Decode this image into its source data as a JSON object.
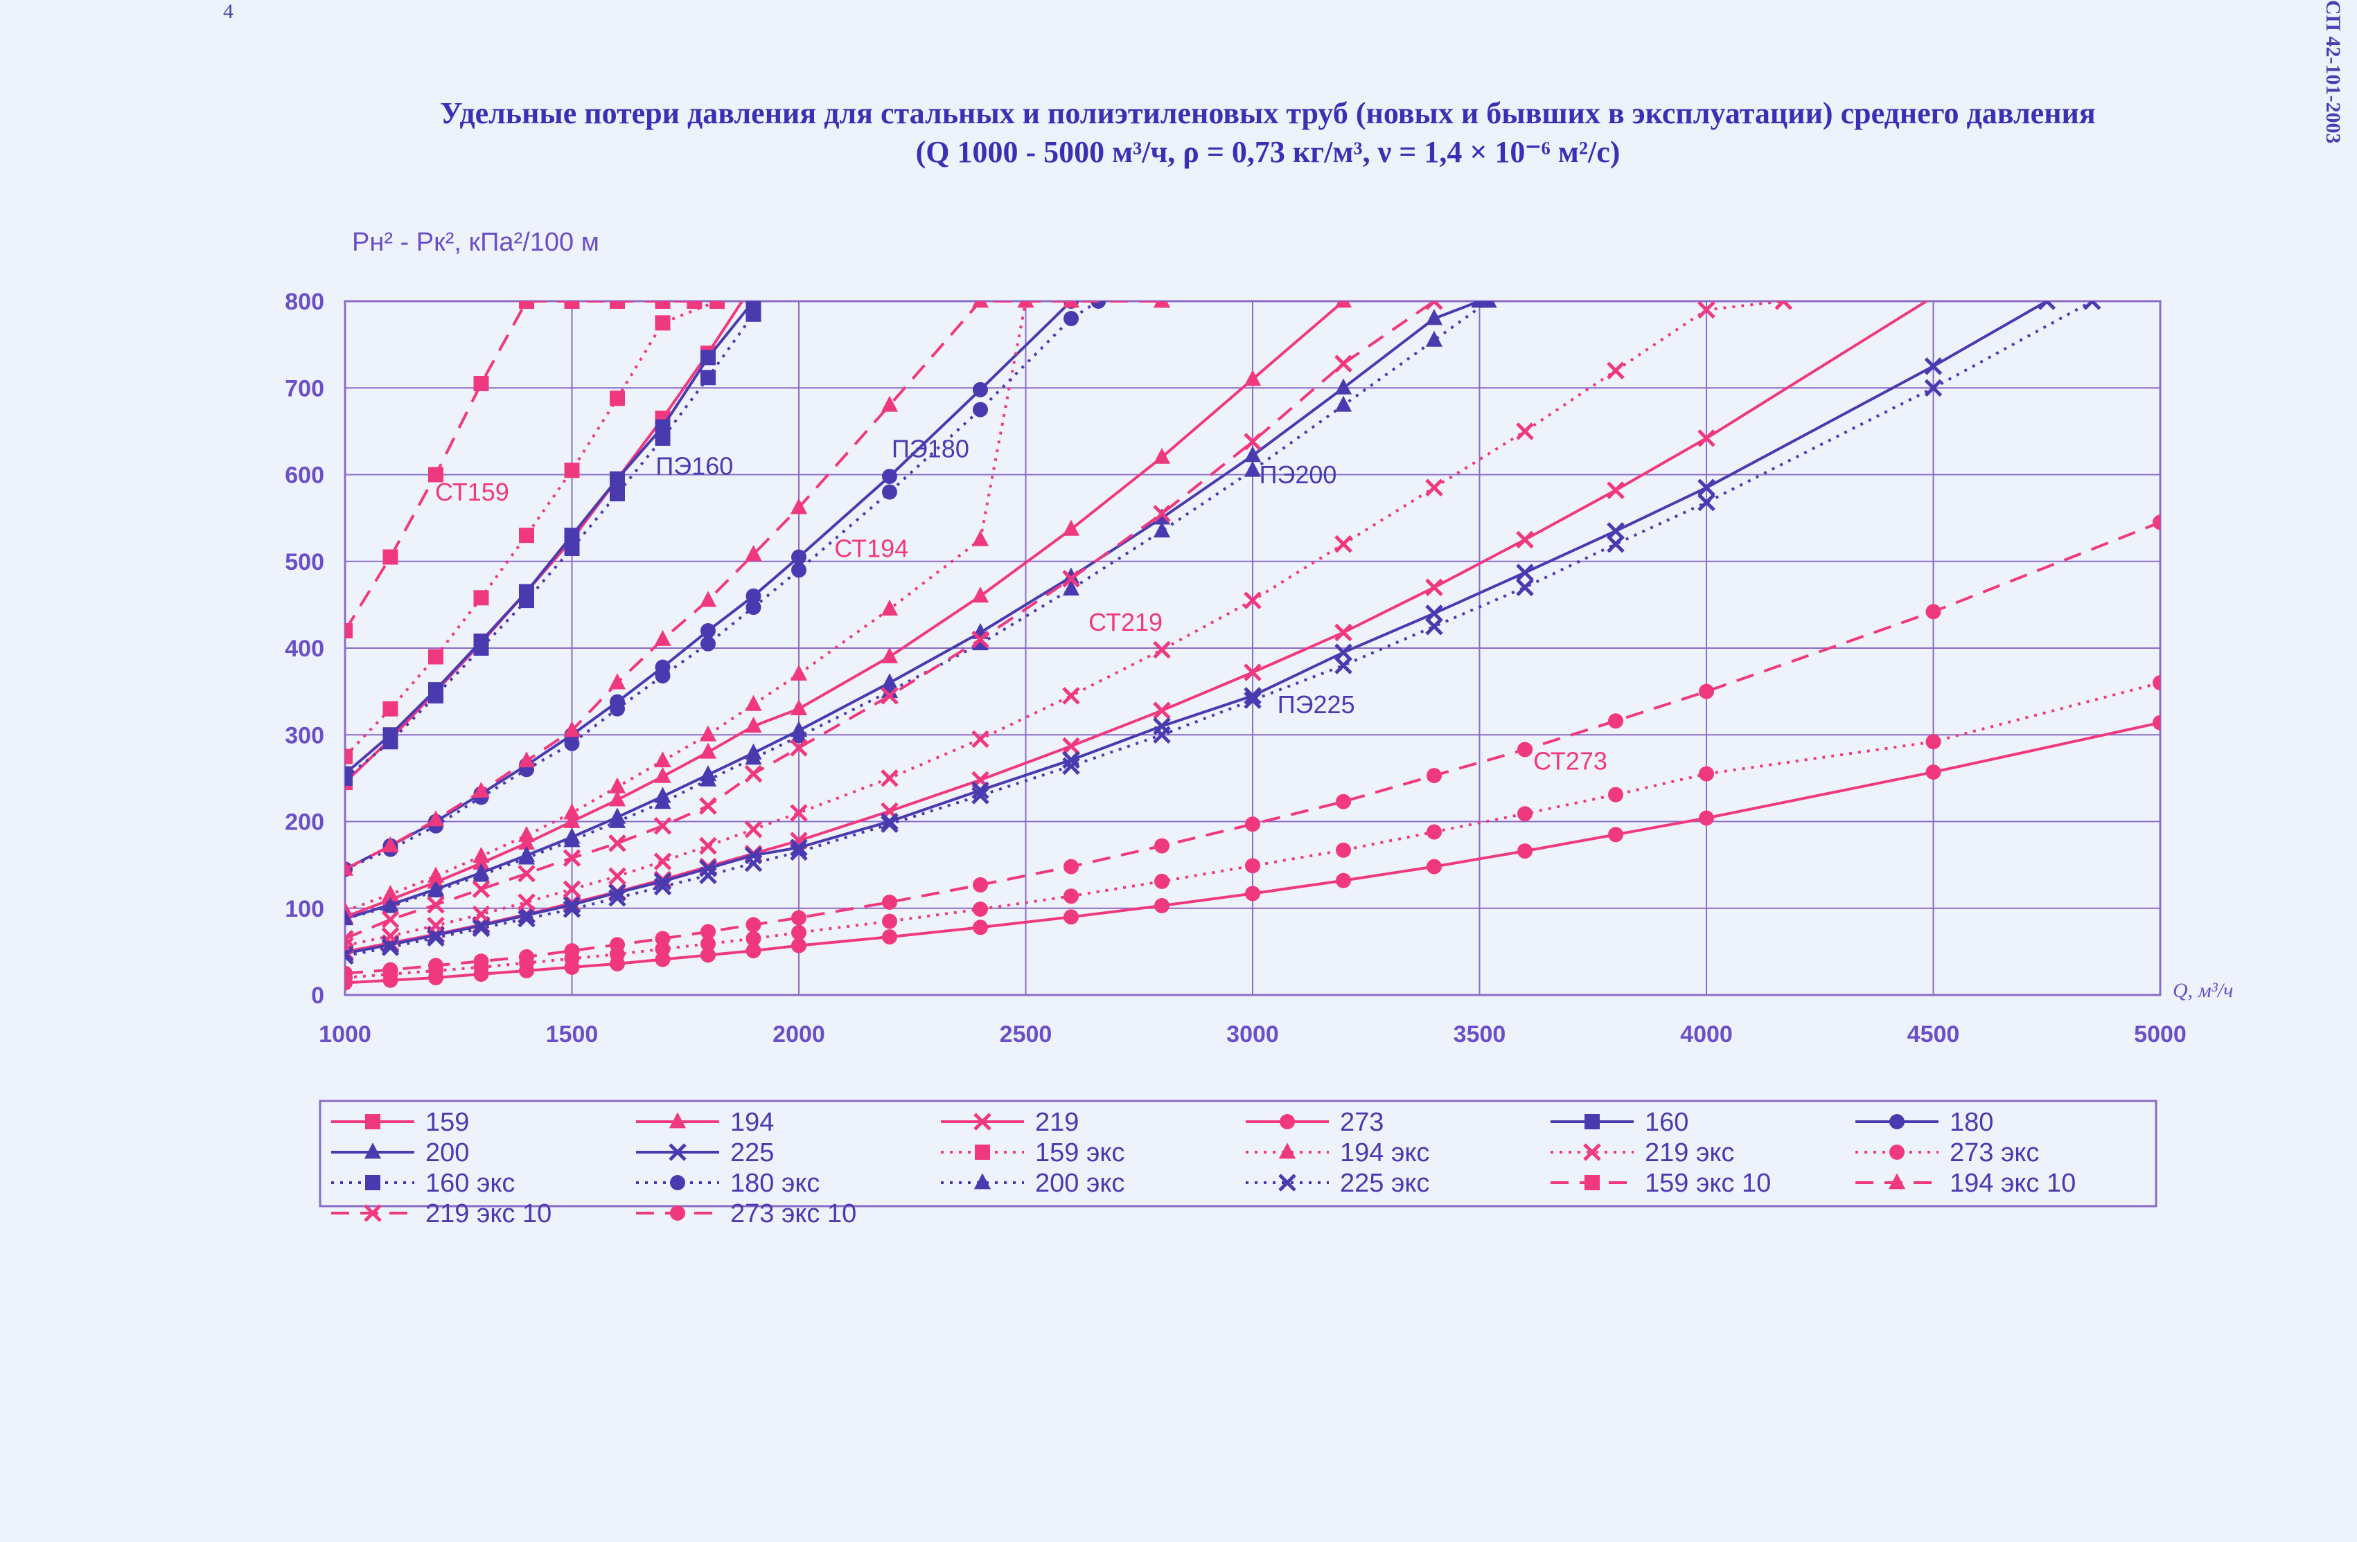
{
  "page": {
    "page_number": "4",
    "doc_code": "СП 42-101-2003",
    "title_line1": "Удельные потери давления для стальных и полиэтиленовых труб (новых и бывших в эксплуатации) среднего давления",
    "title_line2": "(Q 1000 - 5000 м³/ч, ρ = 0,73 кг/м³, ν = 1,4 × 10⁻⁶ м²/с)"
  },
  "colors": {
    "pink": "#f0387f",
    "purple": "#4a3ab0",
    "grid": "#8a6cc6",
    "label": "#6b4fc7"
  },
  "chart_data": {
    "type": "line",
    "title": "Удельные потери давления для стальных и полиэтиленовых труб (новых и бывших в эксплуатации) среднего давления",
    "ylabel": "Pн² - Pк², кПа²/100 м",
    "xlabel": "Q, м³/ч",
    "xlim": [
      1000,
      5000
    ],
    "ylim": [
      0,
      800
    ],
    "xticks": [
      1000,
      1500,
      2000,
      2500,
      3000,
      3500,
      4000,
      4500,
      5000
    ],
    "yticks": [
      0,
      100,
      200,
      300,
      400,
      500,
      600,
      700,
      800
    ],
    "grid": true,
    "legend_position": "bottom",
    "annotations": [
      {
        "text": "СТ159",
        "x": 1280,
        "y": 570
      },
      {
        "text": "ПЭ160",
        "x": 1770,
        "y": 600
      },
      {
        "text": "ПЭ180",
        "x": 2290,
        "y": 620
      },
      {
        "text": "СТ194",
        "x": 2160,
        "y": 505
      },
      {
        "text": "СТ219",
        "x": 2720,
        "y": 420
      },
      {
        "text": "ПЭ200",
        "x": 3100,
        "y": 590
      },
      {
        "text": "ПЭ225",
        "x": 3140,
        "y": 325
      },
      {
        "text": "СТ273",
        "x": 3700,
        "y": 260
      }
    ],
    "series": [
      {
        "name": "159",
        "color": "pink",
        "dash": "solid",
        "marker": "square",
        "x": [
          1000,
          1100,
          1200,
          1300,
          1400,
          1500,
          1600,
          1700,
          1800,
          1900
        ],
        "y": [
          245,
          295,
          350,
          406,
          465,
          525,
          595,
          665,
          740,
          820
        ]
      },
      {
        "name": "194",
        "color": "pink",
        "dash": "solid",
        "marker": "triangle",
        "x": [
          1000,
          1100,
          1200,
          1300,
          1400,
          1500,
          1600,
          1700,
          1800,
          1900,
          2000,
          2200,
          2400,
          2600,
          2800,
          3000,
          3200
        ],
        "y": [
          90,
          110,
          130,
          152,
          175,
          200,
          225,
          252,
          280,
          310,
          330,
          390,
          460,
          537,
          620,
          710,
          800
        ]
      },
      {
        "name": "219",
        "color": "pink",
        "dash": "solid",
        "marker": "x",
        "x": [
          1000,
          1100,
          1200,
          1300,
          1400,
          1500,
          1600,
          1700,
          1800,
          1900,
          2000,
          2200,
          2400,
          2600,
          2800,
          3000,
          3200,
          3400,
          3600,
          3800,
          4000,
          4500
        ],
        "y": [
          50,
          60,
          70,
          81,
          93,
          106,
          119,
          133,
          148,
          163,
          178,
          212,
          248,
          287,
          328,
          372,
          418,
          470,
          525,
          582,
          642,
          805
        ]
      },
      {
        "name": "273",
        "color": "pink",
        "dash": "solid",
        "marker": "circle",
        "x": [
          1000,
          1100,
          1200,
          1300,
          1400,
          1500,
          1600,
          1700,
          1800,
          1900,
          2000,
          2200,
          2400,
          2600,
          2800,
          3000,
          3200,
          3400,
          3600,
          3800,
          4000,
          4500,
          5000
        ],
        "y": [
          14,
          17,
          20,
          24,
          28,
          32,
          36,
          41,
          46,
          51,
          57,
          67,
          78,
          90,
          103,
          117,
          132,
          148,
          166,
          185,
          204,
          257,
          314
        ]
      },
      {
        "name": "160",
        "color": "purple",
        "dash": "solid",
        "marker": "square",
        "x": [
          1000,
          1100,
          1200,
          1300,
          1400,
          1500,
          1600,
          1700,
          1800,
          1900
        ],
        "y": [
          255,
          300,
          352,
          408,
          465,
          530,
          595,
          655,
          735,
          800
        ]
      },
      {
        "name": "180",
        "color": "purple",
        "dash": "solid",
        "marker": "circle",
        "x": [
          1000,
          1100,
          1200,
          1300,
          1400,
          1500,
          1600,
          1700,
          1800,
          1900,
          2000,
          2200,
          2400,
          2600
        ],
        "y": [
          145,
          172,
          200,
          232,
          265,
          300,
          338,
          378,
          420,
          460,
          505,
          598,
          698,
          800
        ]
      },
      {
        "name": "200",
        "color": "purple",
        "dash": "solid",
        "marker": "triangle",
        "x": [
          1000,
          1100,
          1200,
          1300,
          1400,
          1500,
          1600,
          1700,
          1800,
          1900,
          2000,
          2200,
          2400,
          2600,
          2800,
          3000,
          3200,
          3400,
          3500
        ],
        "y": [
          88,
          104,
          122,
          141,
          161,
          182,
          205,
          229,
          254,
          279,
          305,
          360,
          418,
          482,
          550,
          622,
          700,
          780,
          800
        ]
      },
      {
        "name": "225",
        "color": "purple",
        "dash": "solid",
        "marker": "x",
        "x": [
          1000,
          1100,
          1200,
          1300,
          1400,
          1500,
          1600,
          1700,
          1800,
          1900,
          2000,
          2200,
          2400,
          2600,
          2800,
          3000,
          3200,
          3400,
          3600,
          3800,
          4000,
          4500,
          4750
        ],
        "y": [
          48,
          58,
          69,
          80,
          92,
          104,
          118,
          131,
          146,
          161,
          170,
          200,
          236,
          271,
          310,
          345,
          395,
          440,
          487,
          535,
          585,
          725,
          800
        ]
      },
      {
        "name": "159 экс",
        "color": "pink",
        "dash": "dot",
        "marker": "square",
        "x": [
          1000,
          1100,
          1200,
          1300,
          1400,
          1500,
          1600,
          1700,
          1820
        ],
        "y": [
          275,
          330,
          390,
          458,
          530,
          605,
          688,
          775,
          800
        ]
      },
      {
        "name": "194 экс",
        "color": "pink",
        "dash": "dot",
        "marker": "triangle",
        "x": [
          1000,
          1100,
          1200,
          1300,
          1400,
          1500,
          1600,
          1700,
          1800,
          1900,
          2000,
          2200,
          2400,
          2500
        ],
        "y": [
          97,
          116,
          137,
          160,
          184,
          210,
          240,
          270,
          300,
          335,
          370,
          445,
          525,
          800
        ]
      },
      {
        "name": "219 экс",
        "color": "pink",
        "dash": "dot",
        "marker": "x",
        "x": [
          1000,
          1100,
          1200,
          1300,
          1400,
          1500,
          1600,
          1700,
          1800,
          1900,
          2000,
          2200,
          2400,
          2600,
          2800,
          3000,
          3200,
          3400,
          3600,
          3800,
          4000,
          4170
        ],
        "y": [
          57,
          68,
          80,
          93,
          107,
          122,
          137,
          154,
          172,
          191,
          210,
          250,
          295,
          345,
          398,
          455,
          520,
          585,
          650,
          720,
          790,
          800
        ]
      },
      {
        "name": "273 экс",
        "color": "pink",
        "dash": "dot",
        "marker": "circle",
        "x": [
          1000,
          1100,
          1200,
          1300,
          1400,
          1500,
          1600,
          1700,
          1800,
          1900,
          2000,
          2200,
          2400,
          2600,
          2800,
          3000,
          3200,
          3400,
          3600,
          3800,
          4000,
          4500,
          5000
        ],
        "y": [
          20,
          24,
          28,
          32,
          37,
          42,
          47,
          53,
          59,
          65,
          72,
          85,
          99,
          114,
          131,
          149,
          167,
          188,
          209,
          231,
          255,
          292,
          360
        ]
      },
      {
        "name": "160 экс",
        "color": "purple",
        "dash": "dot",
        "marker": "square",
        "x": [
          1000,
          1100,
          1200,
          1300,
          1400,
          1500,
          1600,
          1700,
          1800,
          1900
        ],
        "y": [
          250,
          292,
          345,
          400,
          455,
          515,
          578,
          642,
          712,
          785
        ]
      },
      {
        "name": "180 экс",
        "color": "purple",
        "dash": "dot",
        "marker": "circle",
        "x": [
          1000,
          1100,
          1200,
          1300,
          1400,
          1500,
          1600,
          1700,
          1800,
          1900,
          2000,
          2200,
          2400,
          2600,
          2660
        ],
        "y": [
          145,
          168,
          195,
          228,
          260,
          290,
          330,
          368,
          405,
          447,
          490,
          580,
          675,
          780,
          800
        ]
      },
      {
        "name": "200 экс",
        "color": "purple",
        "dash": "dot",
        "marker": "triangle",
        "x": [
          1000,
          1100,
          1200,
          1300,
          1400,
          1500,
          1600,
          1700,
          1800,
          1900,
          2000,
          2200,
          2400,
          2600,
          2800,
          3000,
          3200,
          3400,
          3520
        ],
        "y": [
          88,
          102,
          120,
          138,
          158,
          178,
          200,
          222,
          248,
          273,
          298,
          350,
          405,
          468,
          535,
          605,
          680,
          755,
          800
        ]
      },
      {
        "name": "225 экс",
        "color": "purple",
        "dash": "dot",
        "marker": "x",
        "x": [
          1000,
          1100,
          1200,
          1300,
          1400,
          1500,
          1600,
          1700,
          1800,
          1900,
          2000,
          2200,
          2400,
          2600,
          2800,
          3000,
          3200,
          3400,
          3600,
          3800,
          4000,
          4500,
          4850
        ],
        "y": [
          45,
          55,
          66,
          77,
          88,
          99,
          112,
          125,
          138,
          152,
          165,
          197,
          230,
          264,
          300,
          340,
          380,
          425,
          470,
          520,
          568,
          700,
          800
        ]
      },
      {
        "name": "159 экс 10",
        "color": "pink",
        "dash": "dash",
        "marker": "square",
        "x": [
          1000,
          1100,
          1200,
          1300,
          1400,
          1500,
          1600,
          1700,
          1770
        ],
        "y": [
          420,
          505,
          600,
          705,
          800,
          800,
          800,
          800,
          800
        ]
      },
      {
        "name": "194 экс 10",
        "color": "pink",
        "dash": "dash",
        "marker": "triangle",
        "x": [
          1000,
          1100,
          1200,
          1300,
          1400,
          1500,
          1600,
          1700,
          1800,
          1900,
          2000,
          2200,
          2400,
          2600,
          2800,
          2800
        ],
        "y": [
          145,
          172,
          202,
          235,
          270,
          305,
          360,
          410,
          455,
          508,
          562,
          680,
          800,
          800,
          800,
          800
        ]
      },
      {
        "name": "219 экс 10",
        "color": "pink",
        "dash": "dash",
        "marker": "x",
        "x": [
          1000,
          1100,
          1200,
          1300,
          1400,
          1500,
          1600,
          1700,
          1800,
          1900,
          2000,
          2200,
          2400,
          2600,
          2800,
          3000,
          3200,
          3400
        ],
        "y": [
          65,
          87,
          104,
          122,
          140,
          158,
          175,
          195,
          218,
          255,
          285,
          345,
          410,
          480,
          555,
          638,
          728,
          800
        ]
      },
      {
        "name": "273 экс 10",
        "color": "pink",
        "dash": "dash",
        "marker": "circle",
        "x": [
          1000,
          1100,
          1200,
          1300,
          1400,
          1500,
          1600,
          1700,
          1800,
          1900,
          2000,
          2200,
          2400,
          2600,
          2800,
          3000,
          3200,
          3400,
          3600,
          3800,
          4000,
          4500,
          5000
        ],
        "y": [
          25,
          29,
          34,
          39,
          44,
          51,
          58,
          65,
          73,
          81,
          89,
          107,
          127,
          148,
          172,
          197,
          223,
          253,
          283,
          316,
          350,
          442,
          545
        ]
      }
    ]
  }
}
